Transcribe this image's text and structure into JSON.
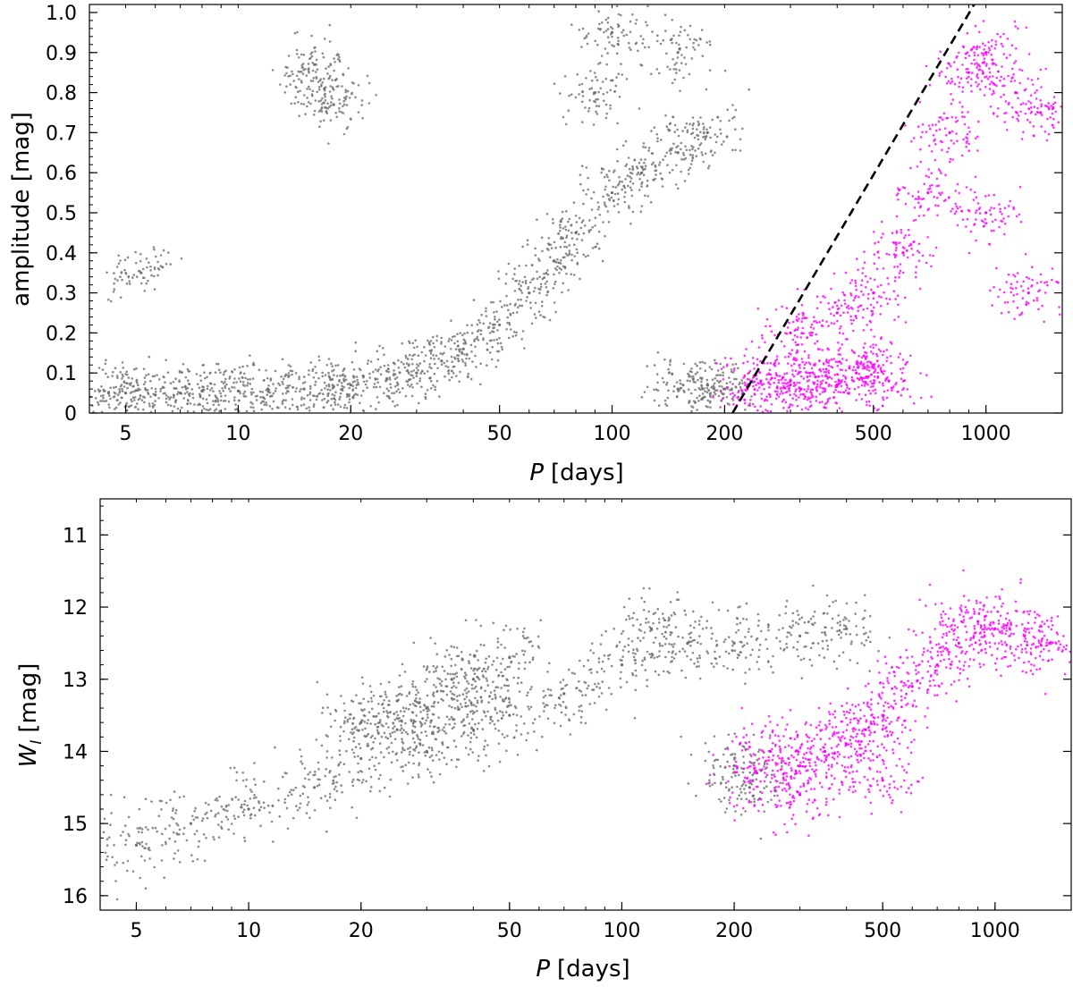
{
  "chart_data": [
    {
      "type": "scatter",
      "xlabel_italic": "P",
      "xlabel_unit": "[days]",
      "ylabel": "amplitude [mag]",
      "xscale": "log",
      "xlim": [
        4,
        1600
      ],
      "ylim": [
        0,
        1.02
      ],
      "x_ticks": [
        5,
        10,
        20,
        50,
        100,
        200,
        500,
        1000
      ],
      "x_tick_labels": [
        "5",
        "10",
        "20",
        "50",
        "100",
        "200",
        "500",
        "1000"
      ],
      "y_ticks": [
        0,
        0.1,
        0.2,
        0.3,
        0.4,
        0.5,
        0.6,
        0.7,
        0.8,
        0.9,
        1.0
      ],
      "y_tick_labels": [
        "0",
        "0.1",
        "0.2",
        "0.3",
        "0.4",
        "0.5",
        "0.6",
        "0.7",
        "0.8",
        "0.9",
        "1.0"
      ],
      "grid": false,
      "legend": "none",
      "series": [
        {
          "color": "#6e6e6e",
          "points": [
            [
              4.5,
              0.05
            ],
            [
              5,
              0.05
            ],
            [
              6,
              0.045
            ],
            [
              7,
              0.05
            ],
            [
              8,
              0.055
            ],
            [
              10,
              0.055
            ],
            [
              12,
              0.06
            ],
            [
              15,
              0.06
            ],
            [
              18,
              0.065
            ],
            [
              20,
              0.07
            ],
            [
              25,
              0.085
            ],
            [
              30,
              0.1
            ],
            [
              35,
              0.13
            ],
            [
              40,
              0.16
            ],
            [
              50,
              0.22
            ],
            [
              60,
              0.3
            ],
            [
              70,
              0.38
            ],
            [
              80,
              0.45
            ],
            [
              100,
              0.55
            ],
            [
              120,
              0.6
            ],
            [
              150,
              0.65
            ],
            [
              180,
              0.7
            ],
            [
              90,
              0.8
            ],
            [
              100,
              0.95
            ],
            [
              150,
              0.9
            ],
            [
              200,
              0.06
            ],
            [
              180,
              0.07
            ],
            [
              150,
              0.06
            ],
            [
              5.5,
              0.35
            ],
            [
              16,
              0.87
            ],
            [
              17,
              0.81
            ],
            [
              18,
              0.77
            ]
          ]
        },
        {
          "color": "#ff00ff",
          "points": [
            [
              230,
              0.06
            ],
            [
              250,
              0.08
            ],
            [
              300,
              0.07
            ],
            [
              320,
              0.06
            ],
            [
              350,
              0.09
            ],
            [
              400,
              0.07
            ],
            [
              450,
              0.1
            ],
            [
              500,
              0.12
            ],
            [
              550,
              0.08
            ],
            [
              300,
              0.2
            ],
            [
              400,
              0.25
            ],
            [
              500,
              0.3
            ],
            [
              600,
              0.4
            ],
            [
              700,
              0.55
            ],
            [
              800,
              0.7
            ],
            [
              900,
              0.85
            ],
            [
              1000,
              0.9
            ],
            [
              1200,
              0.8
            ],
            [
              1400,
              0.75
            ],
            [
              1000,
              0.5
            ],
            [
              1300,
              0.3
            ]
          ]
        }
      ],
      "dividing_line": {
        "style": "dashed",
        "color": "#000000",
        "points": [
          [
            210,
            0.0
          ],
          [
            930,
            1.02
          ]
        ]
      }
    },
    {
      "type": "scatter",
      "xlabel_italic": "P",
      "xlabel_unit": "[days]",
      "ylabel_italic": "W",
      "ylabel_subscript": "I",
      "ylabel_unit": "[mag]",
      "xscale": "log",
      "xlim": [
        4,
        1600
      ],
      "ylim": [
        16.2,
        10.5
      ],
      "y_inverted": true,
      "x_ticks": [
        5,
        10,
        20,
        50,
        100,
        200,
        500,
        1000
      ],
      "x_tick_labels": [
        "5",
        "10",
        "20",
        "50",
        "100",
        "200",
        "500",
        "1000"
      ],
      "y_ticks": [
        11,
        12,
        13,
        14,
        15,
        16
      ],
      "y_tick_labels": [
        "11",
        "12",
        "13",
        "14",
        "15",
        "16"
      ],
      "grid": false,
      "legend": "none",
      "series": [
        {
          "color": "#6e6e6e",
          "points": [
            [
              5,
              15.3
            ],
            [
              7,
              15.0
            ],
            [
              10,
              14.8
            ],
            [
              15,
              14.5
            ],
            [
              20,
              14.1
            ],
            [
              25,
              13.7
            ],
            [
              30,
              13.4
            ],
            [
              40,
              13.0
            ],
            [
              20,
              13.6
            ],
            [
              25,
              13.3
            ],
            [
              35,
              13.0
            ],
            [
              50,
              12.7
            ],
            [
              30,
              14.0
            ],
            [
              40,
              13.7
            ],
            [
              50,
              13.5
            ],
            [
              70,
              13.2
            ],
            [
              100,
              12.8
            ],
            [
              150,
              12.5
            ],
            [
              200,
              12.5
            ],
            [
              120,
              12.3
            ],
            [
              200,
              14.2
            ],
            [
              220,
              14.5
            ],
            [
              300,
              12.4
            ],
            [
              400,
              12.3
            ]
          ]
        },
        {
          "color": "#ff00ff",
          "points": [
            [
              230,
              14.3
            ],
            [
              300,
              14.2
            ],
            [
              350,
              14.0
            ],
            [
              400,
              13.9
            ],
            [
              450,
              13.7
            ],
            [
              500,
              13.5
            ],
            [
              600,
              13.1
            ],
            [
              700,
              12.8
            ],
            [
              800,
              12.5
            ],
            [
              900,
              12.2
            ],
            [
              1000,
              12.3
            ],
            [
              1200,
              12.4
            ],
            [
              1400,
              12.5
            ],
            [
              300,
              14.6
            ],
            [
              500,
              14.4
            ],
            [
              250,
              14.0
            ]
          ]
        }
      ]
    }
  ]
}
